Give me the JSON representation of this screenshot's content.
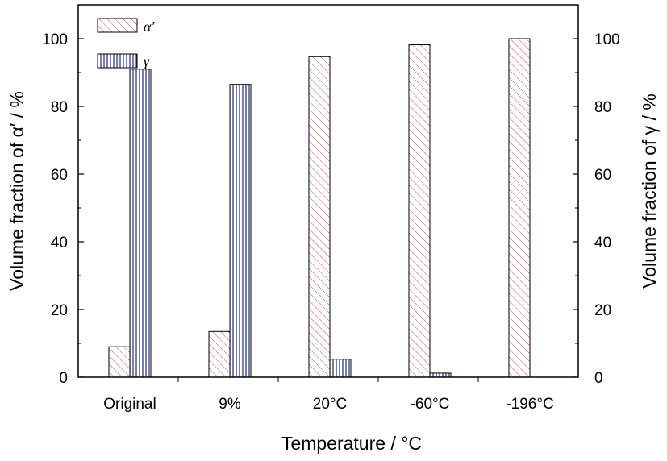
{
  "chart_data": {
    "type": "bar",
    "categories": [
      "Original",
      "9%",
      "20°C",
      "-60°C",
      "-196°C"
    ],
    "series": [
      {
        "name": "α′",
        "values": [
          9,
          13.5,
          94.7,
          98.2,
          100
        ]
      },
      {
        "name": "γ",
        "values": [
          91,
          86.5,
          5.3,
          1.2,
          0
        ]
      }
    ],
    "xlabel": "Temperature / °C",
    "ylabel_left": "Volume fraction of α′ / %",
    "ylabel_right": "Volume fraction of γ / %",
    "ylim": [
      0,
      110
    ],
    "yticks": [
      0,
      20,
      40,
      60,
      80,
      100
    ],
    "legend_position": "top-left",
    "grid": false,
    "colors": {
      "alpha_hatch": "#c0504d",
      "gamma_hatch": "#1f2a6b",
      "axis": "#000000"
    }
  }
}
